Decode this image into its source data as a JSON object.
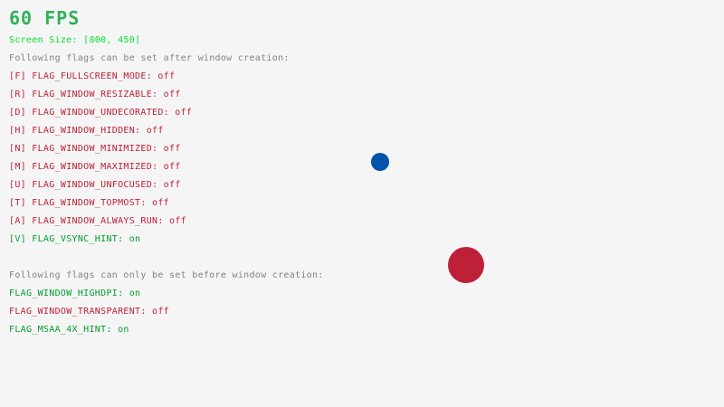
{
  "fps": "60 FPS",
  "screen_size": "Screen Size: [800, 450]",
  "after_heading": "Following flags can be set after window creation:",
  "after_flags": [
    {
      "label": "[F] FLAG_FULLSCREEN_MODE: off",
      "on": false
    },
    {
      "label": "[R] FLAG_WINDOW_RESIZABLE: off",
      "on": false
    },
    {
      "label": "[D] FLAG_WINDOW_UNDECORATED: off",
      "on": false
    },
    {
      "label": "[H] FLAG_WINDOW_HIDDEN: off",
      "on": false
    },
    {
      "label": "[N] FLAG_WINDOW_MINIMIZED: off",
      "on": false
    },
    {
      "label": "[M] FLAG_WINDOW_MAXIMIZED: off",
      "on": false
    },
    {
      "label": "[U] FLAG_WINDOW_UNFOCUSED: off",
      "on": false
    },
    {
      "label": "[T] FLAG_WINDOW_TOPMOST: off",
      "on": false
    },
    {
      "label": "[A] FLAG_WINDOW_ALWAYS_RUN: off",
      "on": false
    },
    {
      "label": "[V] FLAG_VSYNC_HINT: on",
      "on": true
    }
  ],
  "before_heading": "Following flags can only be set before window creation:",
  "before_flags": [
    {
      "label": "FLAG_WINDOW_HIGHDPI: on",
      "on": true
    },
    {
      "label": "FLAG_WINDOW_TRANSPARENT: off",
      "on": false
    },
    {
      "label": "FLAG_MSAA_4X_HINT: on",
      "on": true
    }
  ],
  "colors": {
    "on": "#009e2f",
    "off": "#be2137",
    "screen_size": "#00e430",
    "fps": "#2fb25a",
    "heading": "#828282",
    "background": "#f5f5f5",
    "blue_ball": "#0052ac",
    "red_ball": "#be2137"
  }
}
